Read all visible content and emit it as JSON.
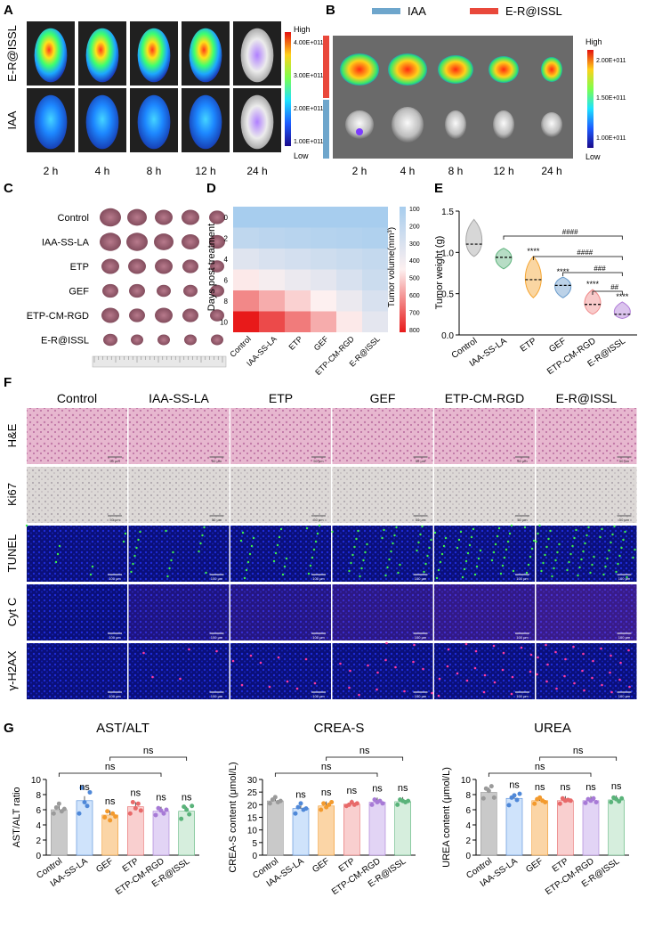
{
  "panels": {
    "A": {
      "label": "A",
      "rows": [
        "E-R@ISSL",
        "IAA"
      ],
      "times": [
        "2 h",
        "4 h",
        "8 h",
        "12 h",
        "24 h"
      ],
      "scale_high": "High",
      "scale_low": "Low",
      "scale_ticks": [
        "4.00E+011",
        "3.00E+011",
        "2.00E+011",
        "1.00E+011"
      ]
    },
    "B": {
      "label": "B",
      "legend": [
        "IAA",
        "E-R@ISSL"
      ],
      "times": [
        "2 h",
        "4 h",
        "8 h",
        "12 h",
        "24 h"
      ],
      "scale_high": "High",
      "scale_low": "Low",
      "scale_ticks": [
        "2.00E+011",
        "1.50E+011",
        "1.00E+011"
      ]
    },
    "C": {
      "label": "C",
      "rows": [
        "Control",
        "IAA-SS-LA",
        "ETP",
        "GEF",
        "ETP-CM-RGD",
        "E-R@ISSL"
      ]
    },
    "D": {
      "label": "D",
      "ylabel": "Days post treatment",
      "colorbar_label": "Tumor volume(mm³)",
      "days": [
        "0",
        "2",
        "4",
        "6",
        "8",
        "10"
      ],
      "groups": [
        "Control",
        "IAA-SS-LA",
        "ETP",
        "GEF",
        "ETP-CM-RGD",
        "E-R@ISSL"
      ],
      "colorbar_ticks": [
        "100",
        "200",
        "300",
        "400",
        "500",
        "600",
        "700",
        "800"
      ]
    },
    "E": {
      "label": "E",
      "ylabel": "Tumor weight (g)",
      "yticks": [
        "0.0",
        "0.5",
        "1.0",
        "1.5"
      ],
      "groups": [
        "Control",
        "IAA-SS-LA",
        "ETP",
        "GEF",
        "ETP-CM-RGD",
        "E-R@ISSL"
      ],
      "sig": [
        "****",
        "****",
        "****",
        "****"
      ],
      "brackets": [
        "####",
        "####",
        "###",
        "##"
      ]
    },
    "F": {
      "label": "F",
      "groups": [
        "Control",
        "IAA-SS-LA",
        "ETP",
        "GEF",
        "ETP-CM-RGD",
        "E-R@ISSL"
      ],
      "stains": [
        "H&E",
        "Ki67",
        "TUNEL",
        "Cyt C",
        "γ-H2AX"
      ],
      "scale_50": "50 μm",
      "scale_100": "100 μm"
    },
    "G": {
      "label": "G",
      "charts": [
        {
          "title": "AST/ALT",
          "ylabel": "AST/ALT ratio",
          "yticks": [
            "0",
            "2",
            "4",
            "6",
            "8",
            "10"
          ]
        },
        {
          "title": "CREA-S",
          "ylabel": "CREA-S content (μmol/L)",
          "yticks": [
            "0",
            "5",
            "10",
            "15",
            "20",
            "25",
            "30"
          ]
        },
        {
          "title": "UREA",
          "ylabel": "UREA content (μmol/L)",
          "yticks": [
            "0",
            "2",
            "4",
            "6",
            "8",
            "10"
          ]
        }
      ],
      "groups": [
        "Control",
        "IAA-SS-LA",
        "GEF",
        "ETP",
        "ETP-CM-RGD",
        "E-R@ISSL"
      ],
      "ns": "ns"
    }
  },
  "chart_data": [
    {
      "type": "heatmap",
      "title": "",
      "xlabel": "",
      "ylabel": "Days post treatment",
      "x": [
        "Control",
        "IAA-SS-LA",
        "ETP",
        "GEF",
        "ETP-CM-RGD",
        "E-R@ISSL"
      ],
      "y": [
        "0",
        "2",
        "4",
        "6",
        "8",
        "10"
      ],
      "values": [
        [
          100,
          100,
          100,
          100,
          100,
          100
        ],
        [
          200,
          185,
          170,
          160,
          150,
          140
        ],
        [
          330,
          300,
          280,
          260,
          240,
          220
        ],
        [
          460,
          420,
          380,
          350,
          300,
          250
        ],
        [
          620,
          560,
          500,
          450,
          380,
          300
        ],
        [
          800,
          720,
          640,
          560,
          460,
          350
        ]
      ],
      "colorbar_range": [
        100,
        800
      ]
    },
    {
      "type": "violin",
      "title": "",
      "ylabel": "Tumor weight (g)",
      "ylim": [
        0,
        1.5
      ],
      "categories": [
        "Control",
        "IAA-SS-LA",
        "ETP",
        "GEF",
        "ETP-CM-RGD",
        "E-R@ISSL"
      ],
      "medians": [
        1.1,
        0.94,
        0.67,
        0.6,
        0.37,
        0.25
      ],
      "mins": [
        0.95,
        0.8,
        0.45,
        0.45,
        0.25,
        0.2
      ],
      "maxs": [
        1.4,
        1.05,
        0.95,
        0.7,
        0.55,
        0.4
      ]
    },
    {
      "type": "bar",
      "title": "AST/ALT",
      "ylabel": "AST/ALT ratio",
      "ylim": [
        0,
        10
      ],
      "categories": [
        "Control",
        "IAA-SS-LA",
        "GEF",
        "ETP",
        "ETP-CM-RGD",
        "E-R@ISSL"
      ],
      "values": [
        6.0,
        7.2,
        5.3,
        6.4,
        5.8,
        5.8
      ],
      "points": [
        [
          5.5,
          6.3,
          6.8,
          5.8,
          6.1
        ],
        [
          5.5,
          8.9,
          7.0,
          6.5,
          8.3
        ],
        [
          5.0,
          5.8,
          4.6,
          5.5,
          5.1
        ],
        [
          5.5,
          7.0,
          6.2,
          6.8,
          5.9
        ],
        [
          5.3,
          6.2,
          5.9,
          5.5,
          6.0
        ],
        [
          4.8,
          6.4,
          6.0,
          5.4,
          6.5
        ]
      ]
    },
    {
      "type": "bar",
      "title": "CREA-S",
      "ylabel": "CREA-S content (μmol/L)",
      "ylim": [
        0,
        30
      ],
      "categories": [
        "Control",
        "IAA-SS-LA",
        "GEF",
        "ETP",
        "ETP-CM-RGD",
        "E-R@ISSL"
      ],
      "values": [
        21.5,
        18.5,
        19.5,
        20.2,
        21.0,
        21.2
      ],
      "points": [
        [
          20.5,
          22,
          23,
          21,
          21.5
        ],
        [
          16.5,
          19,
          20.5,
          18,
          18.5
        ],
        [
          18,
          20.5,
          19,
          20,
          21
        ],
        [
          19.5,
          20,
          21,
          20,
          20.5
        ],
        [
          20,
          22,
          21,
          21.5,
          20.5
        ],
        [
          20,
          22,
          21.5,
          21,
          21.5
        ]
      ]
    },
    {
      "type": "bar",
      "title": "UREA",
      "ylabel": "UREA content (μmol/L)",
      "ylim": [
        0,
        10
      ],
      "categories": [
        "Control",
        "IAA-SS-LA",
        "GEF",
        "ETP",
        "ETP-CM-RGD",
        "E-R@ISSL"
      ],
      "values": [
        8.3,
        7.5,
        7.2,
        7.2,
        7.2,
        7.3
      ],
      "points": [
        [
          7.5,
          8.8,
          8.5,
          9.1,
          7.6
        ],
        [
          6.6,
          7.6,
          7.9,
          7.3,
          8.1
        ],
        [
          6.8,
          7.4,
          7.6,
          7.2,
          7.0
        ],
        [
          6.8,
          7.5,
          7.2,
          7.3,
          7.2
        ],
        [
          6.9,
          7.4,
          7.2,
          7.5,
          7.0
        ],
        [
          7.0,
          7.6,
          7.4,
          7.1,
          7.5
        ]
      ]
    }
  ],
  "colors": {
    "red": "#e9483b",
    "blue": "#6ea6cc",
    "violin": [
      "#a7a7a7",
      "#5fb47e",
      "#f5a430",
      "#6a9ccc",
      "#f08a8a",
      "#b07cd8"
    ],
    "bars": [
      "#c9c9c9",
      "#cfe3fb",
      "#fbd5a6",
      "#f9cfcf",
      "#e2d4f5",
      "#d6eedd"
    ],
    "dots": [
      "#9a9a9a",
      "#4f88d8",
      "#f39a2d",
      "#e86a6a",
      "#a77ad6",
      "#5ab37a"
    ]
  }
}
